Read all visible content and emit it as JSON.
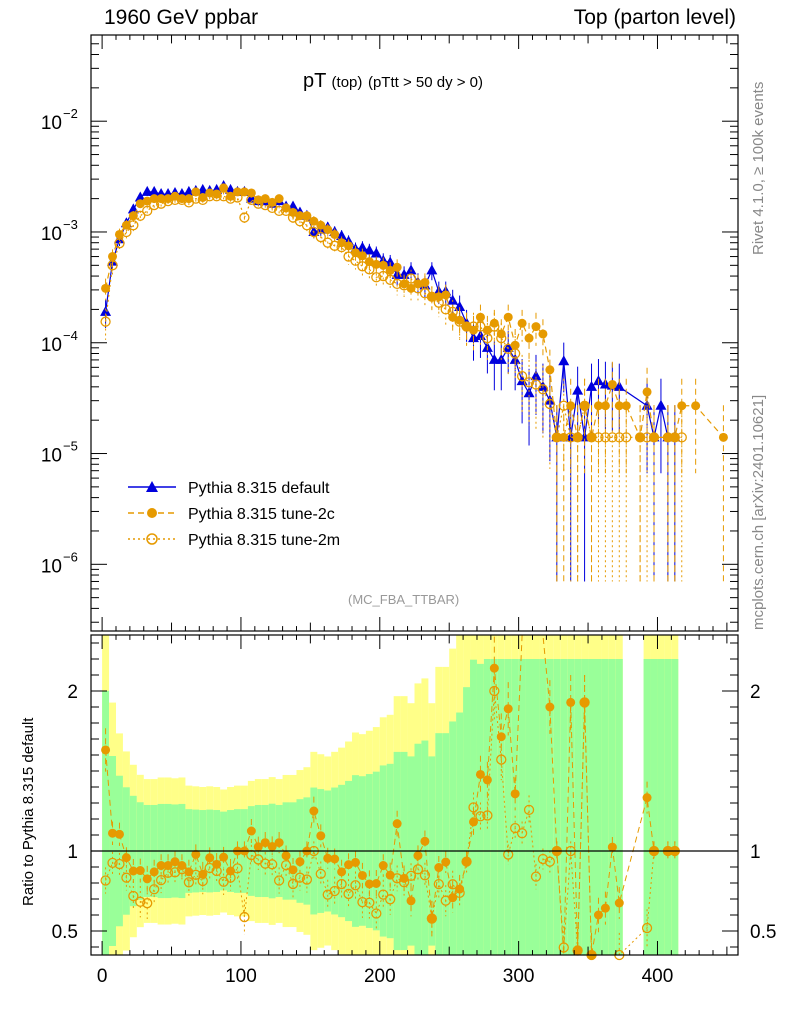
{
  "header": {
    "left": "1960 GeV ppbar",
    "right": "Top (parton level)"
  },
  "side": {
    "rivet": "Rivet 4.1.0, ≥ 100k events",
    "site": "mcplots.cern.ch [arXiv:2401.10621]"
  },
  "chart_data": {
    "type": "line",
    "title_main": "pT",
    "title_sub1": "(top)",
    "title_sub2": "(pTtt > 50 dy > 0)",
    "analysis": "(MC_FBA_TTBAR)",
    "xlabel": "",
    "ylabel_ratio": "Ratio to Pythia 8.315 default",
    "xlim": [
      -8,
      458
    ],
    "ylim_main": [
      2.5e-07,
      0.06
    ],
    "ylim_ratio": [
      0.35,
      2.35
    ],
    "yscale_main": "log",
    "x_ticks": [
      0,
      100,
      200,
      300,
      400
    ],
    "y_ticks_main": [
      {
        "v": 1e-06,
        "base": "10",
        "exp": "−6"
      },
      {
        "v": 1e-05,
        "base": "10",
        "exp": "−5"
      },
      {
        "v": 0.0001,
        "base": "10",
        "exp": "−4"
      },
      {
        "v": 0.001,
        "base": "10",
        "exp": "−3"
      },
      {
        "v": 0.01,
        "base": "10",
        "exp": "−2"
      }
    ],
    "y_ticks_ratio": [
      "0.5",
      "1",
      "2"
    ],
    "legend": [
      "Pythia 8.315 default",
      "Pythia 8.315 tune-2c",
      "Pythia 8.315 tune-2m"
    ],
    "colors": {
      "default": "#0000dd",
      "tune2c": "#e69a00",
      "tune2m": "#e69a00",
      "band_inner": "#99ff99",
      "band_outer": "#ffff88"
    },
    "series": [
      {
        "name": "Pythia 8.315 default",
        "x": [
          2.5,
          7.5,
          12.5,
          17.5,
          22.5,
          27.5,
          32.5,
          37.5,
          42.5,
          47.5,
          52.5,
          57.5,
          62.5,
          67.5,
          72.5,
          77.5,
          82.5,
          87.5,
          92.5,
          97.5,
          102.5,
          107.5,
          112.5,
          117.5,
          122.5,
          127.5,
          132.5,
          137.5,
          142.5,
          147.5,
          152.5,
          157.5,
          162.5,
          167.5,
          172.5,
          177.5,
          182.5,
          187.5,
          192.5,
          197.5,
          202.5,
          207.5,
          212.5,
          217.5,
          222.5,
          227.5,
          232.5,
          237.5,
          242.5,
          247.5,
          252.5,
          257.5,
          262.5,
          267.5,
          272.5,
          277.5,
          282.5,
          287.5,
          292.5,
          297.5,
          302.5,
          307.5,
          312.5,
          317.5,
          322.5,
          327.5,
          332.5,
          337.5,
          342.5,
          347.5,
          352.5,
          357.5,
          362.5,
          367.5,
          372.5,
          392.5,
          397.5,
          402.5,
          407.5,
          412.5
        ],
        "values": [
          0.00019,
          0.00054,
          0.00086,
          0.0012,
          0.0016,
          0.00205,
          0.0023,
          0.0023,
          0.0022,
          0.0022,
          0.00225,
          0.0022,
          0.0023,
          0.00235,
          0.0024,
          0.00235,
          0.0024,
          0.0026,
          0.0024,
          0.0023,
          0.0023,
          0.002,
          0.0019,
          0.0019,
          0.0018,
          0.0019,
          0.0017,
          0.0017,
          0.0015,
          0.0014,
          0.001,
          0.00105,
          0.0011,
          0.001,
          0.00092,
          0.00082,
          0.0007,
          0.00072,
          0.00068,
          0.00064,
          0.00055,
          0.00053,
          0.00041,
          0.00041,
          0.00045,
          0.00035,
          0.00033,
          0.00045,
          0.00029,
          0.00029,
          0.00024,
          0.00021,
          0.00015,
          0.00011,
          0.000115,
          9e-05,
          7e-05,
          7e-05,
          9e-05,
          7e-05,
          4.5e-05,
          3.5e-05,
          5e-05,
          4e-05,
          3e-05,
          1.4e-05,
          6.8e-05,
          1.4e-05,
          3.7e-05,
          1.4e-05,
          4e-05,
          4.5e-05,
          4.2e-05,
          4.1e-05,
          4e-05,
          2.7e-05,
          1.4e-05,
          2.7e-05,
          1.4e-05,
          1.4e-05
        ]
      },
      {
        "name": "Pythia 8.315 tune-2c",
        "x": [
          2.5,
          7.5,
          12.5,
          17.5,
          22.5,
          27.5,
          32.5,
          37.5,
          42.5,
          47.5,
          52.5,
          57.5,
          62.5,
          67.5,
          72.5,
          77.5,
          82.5,
          87.5,
          92.5,
          97.5,
          102.5,
          107.5,
          112.5,
          117.5,
          122.5,
          127.5,
          132.5,
          137.5,
          142.5,
          147.5,
          152.5,
          157.5,
          162.5,
          167.5,
          172.5,
          177.5,
          182.5,
          187.5,
          192.5,
          197.5,
          202.5,
          207.5,
          212.5,
          217.5,
          222.5,
          227.5,
          232.5,
          237.5,
          242.5,
          247.5,
          252.5,
          257.5,
          262.5,
          267.5,
          272.5,
          277.5,
          282.5,
          287.5,
          292.5,
          297.5,
          302.5,
          307.5,
          312.5,
          317.5,
          322.5,
          327.5,
          332.5,
          337.5,
          342.5,
          347.5,
          352.5,
          357.5,
          362.5,
          367.5,
          372.5,
          377.5,
          387.5,
          392.5,
          397.5,
          407.5,
          412.5,
          417.5,
          427.5,
          447.5
        ],
        "values": [
          0.00031,
          0.0006,
          0.00095,
          0.00115,
          0.0014,
          0.0018,
          0.0019,
          0.002,
          0.002,
          0.002,
          0.0021,
          0.002,
          0.002,
          0.0023,
          0.00205,
          0.00225,
          0.0022,
          0.0025,
          0.0021,
          0.0023,
          0.0023,
          0.00225,
          0.00195,
          0.002,
          0.00185,
          0.002,
          0.00165,
          0.0015,
          0.0014,
          0.0014,
          0.00125,
          0.00115,
          0.00105,
          0.00095,
          0.0008,
          0.00075,
          0.00065,
          0.00061,
          0.00054,
          0.00051,
          0.0005,
          0.00045,
          0.00048,
          0.00034,
          0.00031,
          0.00034,
          0.00035,
          0.00026,
          0.00026,
          0.00027,
          0.00017,
          0.00016,
          0.00014,
          0.00013,
          0.00017,
          0.00013,
          0.00015,
          0.00012,
          0.00017,
          9.5e-05,
          0.00015,
          0.00011,
          0.00014,
          0.00012,
          5.7e-05,
          1.4e-05,
          1.4e-05,
          2.7e-05,
          1.4e-05,
          2.7e-05,
          1.4e-05,
          2.7e-05,
          2.7e-05,
          4.2e-05,
          2.7e-05,
          2.7e-05,
          1.4e-05,
          3.6e-05,
          1.4e-05,
          1.4e-05,
          1.4e-05,
          2.7e-05,
          2.7e-05,
          1.4e-05
        ]
      },
      {
        "name": "Pythia 8.315 tune-2m",
        "x": [
          2.5,
          7.5,
          12.5,
          17.5,
          22.5,
          27.5,
          32.5,
          37.5,
          42.5,
          47.5,
          52.5,
          57.5,
          62.5,
          67.5,
          72.5,
          77.5,
          82.5,
          87.5,
          92.5,
          97.5,
          102.5,
          107.5,
          112.5,
          117.5,
          122.5,
          127.5,
          132.5,
          137.5,
          142.5,
          147.5,
          152.5,
          157.5,
          162.5,
          167.5,
          172.5,
          177.5,
          182.5,
          187.5,
          192.5,
          197.5,
          202.5,
          207.5,
          212.5,
          217.5,
          222.5,
          227.5,
          232.5,
          237.5,
          242.5,
          247.5,
          252.5,
          257.5,
          262.5,
          267.5,
          272.5,
          277.5,
          282.5,
          287.5,
          292.5,
          297.5,
          302.5,
          307.5,
          312.5,
          317.5,
          322.5,
          327.5,
          332.5,
          337.5,
          342.5,
          347.5,
          352.5,
          357.5,
          362.5,
          367.5,
          372.5,
          377.5,
          387.5,
          392.5,
          397.5,
          407.5,
          412.5,
          417.5
        ],
        "values": [
          0.000155,
          0.0005,
          0.00079,
          0.001,
          0.00115,
          0.0014,
          0.00155,
          0.00175,
          0.0018,
          0.0019,
          0.00195,
          0.00195,
          0.00185,
          0.002,
          0.00195,
          0.0021,
          0.0021,
          0.0021,
          0.002,
          0.00205,
          0.00135,
          0.00195,
          0.0018,
          0.00175,
          0.00165,
          0.00155,
          0.00155,
          0.00135,
          0.00125,
          0.00115,
          0.001,
          0.0009,
          0.0008,
          0.00075,
          0.00073,
          0.0006,
          0.00055,
          0.00049,
          0.00046,
          0.00039,
          0.0004,
          0.00037,
          0.00034,
          0.00033,
          0.00038,
          0.00031,
          0.00028,
          0.00026,
          0.00023,
          0.0002,
          0.00019,
          0.000155,
          0.00014,
          0.00014,
          0.00014,
          0.00011,
          0.00014,
          0.00011,
          8.8e-05,
          8e-05,
          5e-05,
          4.4e-05,
          4.2e-05,
          3.8e-05,
          2.8e-05,
          1.4e-05,
          2.7e-05,
          1.4e-05,
          1.4e-05,
          2.7e-05,
          1.4e-05,
          1.4e-05,
          1.4e-05,
          1.4e-05,
          1.4e-05,
          1.4e-05,
          1.4e-05,
          1.4e-05,
          1.4e-05,
          1.4e-05,
          1.4e-05,
          1.4e-05
        ]
      }
    ]
  }
}
